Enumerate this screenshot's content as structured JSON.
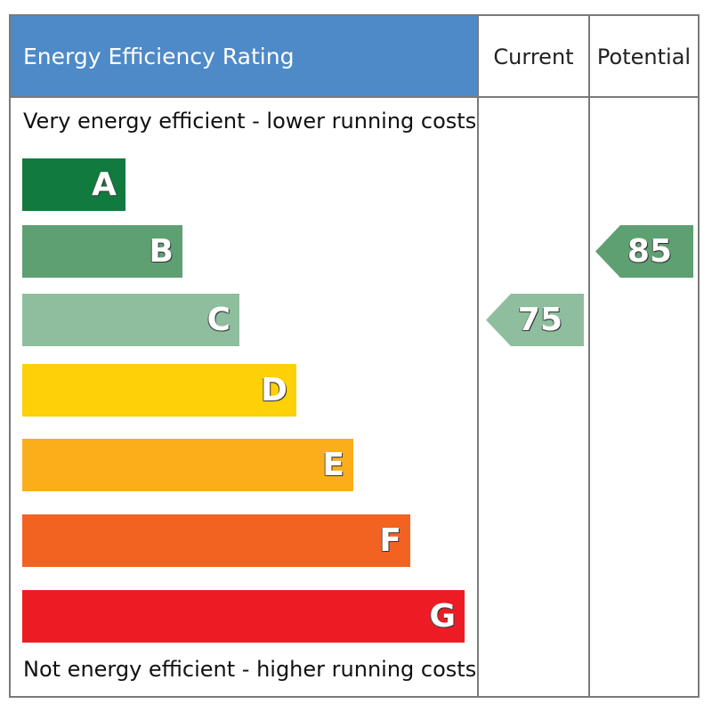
{
  "header": {
    "title": "Energy Efficiency Rating",
    "current_label": "Current",
    "potential_label": "Potential"
  },
  "captions": {
    "top": "Very energy efficient - lower running costs",
    "bottom": "Not energy efficient - higher running costs"
  },
  "chart_data": {
    "type": "bar",
    "title": "Energy Efficiency Rating",
    "categories": [
      "A",
      "B",
      "C",
      "D",
      "E",
      "F",
      "G"
    ],
    "band_colors": [
      "#117a3e",
      "#5ea072",
      "#8fbe9e",
      "#fdd008",
      "#fbae1a",
      "#f26322",
      "#ed1c24"
    ],
    "current": {
      "value": "75",
      "band": "C",
      "color": "#8fbe9e"
    },
    "potential": {
      "value": "85",
      "band": "B",
      "color": "#5ea072"
    }
  }
}
